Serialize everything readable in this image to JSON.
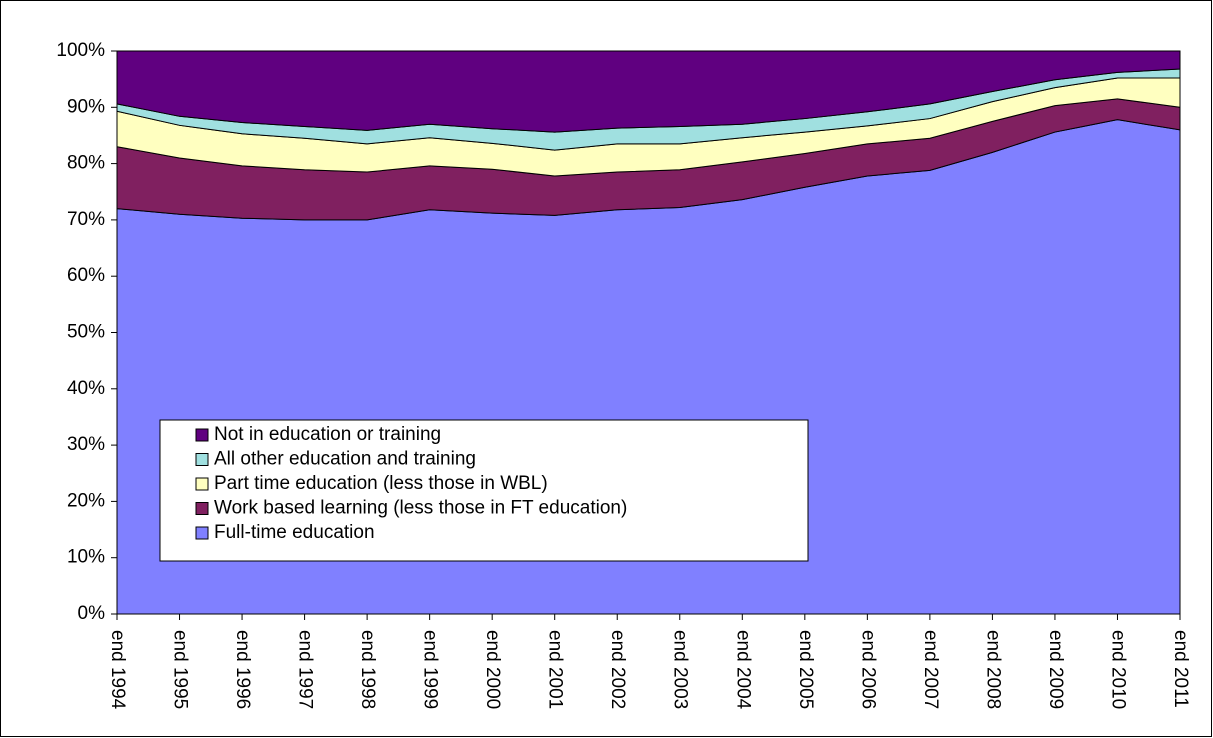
{
  "chart_data": {
    "type": "stacked_area",
    "categories": [
      "end 1994",
      "end 1995",
      "end 1996",
      "end 1997",
      "end 1998",
      "end 1999",
      "end 2000",
      "end 2001",
      "end 2002",
      "end 2003",
      "end 2004",
      "end 2005",
      "end 2006",
      "end 2007",
      "end 2008",
      "end 2009",
      "end 2010",
      "end 2011"
    ],
    "series": [
      {
        "name": "Full-time education",
        "color": "#8080ff",
        "values": [
          72,
          71,
          70.3,
          70,
          70,
          71.8,
          71.2,
          70.8,
          71.8,
          72.2,
          73.6,
          75.8,
          77.8,
          78.8,
          82,
          85.6,
          87.8,
          86
        ]
      },
      {
        "name": "Work based learning (less those in FT education)",
        "color": "#802060",
        "values": [
          11,
          10,
          9.3,
          8.9,
          8.5,
          7.8,
          7.8,
          7,
          6.7,
          6.7,
          6.7,
          6,
          5.7,
          5.7,
          5.5,
          4.7,
          3.7,
          4
        ]
      },
      {
        "name": "Part time education (less those in WBL)",
        "color": "#ffffc0",
        "values": [
          6.3,
          5.8,
          5.7,
          5.6,
          5,
          5,
          4.6,
          4.6,
          5,
          4.6,
          4.3,
          3.8,
          3.2,
          3.5,
          3.5,
          3.2,
          3.7,
          5.2
        ]
      },
      {
        "name": "All other education and training",
        "color": "#a0e0e0",
        "values": [
          1.3,
          1.6,
          2,
          2.1,
          2.4,
          2.4,
          2.6,
          3.2,
          2.8,
          3.1,
          2.4,
          2.4,
          2.5,
          2.6,
          1.8,
          1.4,
          1,
          1.6
        ]
      },
      {
        "name": "Not in education or training",
        "color": "#600080",
        "values": [
          9.4,
          11.6,
          12.7,
          13.4,
          14.1,
          13,
          13.8,
          14.4,
          13.7,
          13.4,
          13,
          12,
          10.8,
          9.4,
          7.2,
          5.1,
          3.8,
          3.2
        ]
      }
    ],
    "ylim": [
      0,
      100
    ],
    "yticks": [
      {
        "value": 0,
        "label": "0%"
      },
      {
        "value": 10,
        "label": "10%"
      },
      {
        "value": 20,
        "label": "20%"
      },
      {
        "value": 30,
        "label": "30%"
      },
      {
        "value": 40,
        "label": "40%"
      },
      {
        "value": 50,
        "label": "50%"
      },
      {
        "value": 60,
        "label": "60%"
      },
      {
        "value": 70,
        "label": "70%"
      },
      {
        "value": 80,
        "label": "80%"
      },
      {
        "value": 90,
        "label": "90%"
      },
      {
        "value": 100,
        "label": "100%"
      }
    ],
    "grid": false,
    "legend": "lower-left"
  }
}
